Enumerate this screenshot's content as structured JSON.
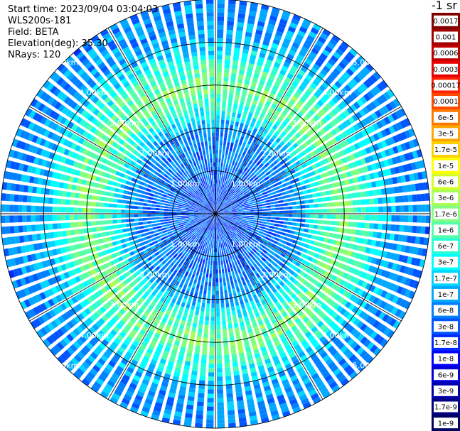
{
  "info": {
    "start_time": "Start time: 2023/09/04 03:04:03",
    "device": "WLS200s-181",
    "field": "Field: BETA",
    "elevation": "Elevation(deg): 35.30",
    "nrays": "NRays: 120"
  },
  "colorbar": {
    "unit": "-1 sr",
    "levels": [
      {
        "label": "0.0017",
        "color": "#800000"
      },
      {
        "label": "0.001",
        "color": "#a00000"
      },
      {
        "label": "0.0006",
        "color": "#c20000"
      },
      {
        "label": "0.0003",
        "color": "#e60000"
      },
      {
        "label": "0.00017",
        "color": "#ff2000"
      },
      {
        "label": "0.0001",
        "color": "#ff4a00"
      },
      {
        "label": "6e-5",
        "color": "#ff7a00"
      },
      {
        "label": "3e-5",
        "color": "#ffa400"
      },
      {
        "label": "1.7e-5",
        "color": "#ffd000"
      },
      {
        "label": "1e-5",
        "color": "#ffff00"
      },
      {
        "label": "6e-6",
        "color": "#d4ff2a"
      },
      {
        "label": "3e-6",
        "color": "#a8ff55"
      },
      {
        "label": "1.7e-6",
        "color": "#80ff80"
      },
      {
        "label": "1e-6",
        "color": "#55ffaa"
      },
      {
        "label": "6e-7",
        "color": "#2affd4"
      },
      {
        "label": "3e-7",
        "color": "#00ffff"
      },
      {
        "label": "1.7e-7",
        "color": "#00d4ff"
      },
      {
        "label": "1e-7",
        "color": "#00a8ff"
      },
      {
        "label": "6e-8",
        "color": "#0080ff"
      },
      {
        "label": "3e-8",
        "color": "#0055ff"
      },
      {
        "label": "1.7e-8",
        "color": "#002aff"
      },
      {
        "label": "1e-8",
        "color": "#0000ff"
      },
      {
        "label": "6e-9",
        "color": "#0000d4"
      },
      {
        "label": "3e-9",
        "color": "#0000aa"
      },
      {
        "label": "1.7e-9",
        "color": "#000080"
      },
      {
        "label": "1e-9",
        "color": "#000060"
      }
    ]
  },
  "chart_data": {
    "type": "heatmap",
    "projection": "polar-ppi",
    "range_rings": [
      {
        "range_km": 1,
        "label": "1.00km"
      },
      {
        "range_km": 2,
        "label": "2.00km"
      },
      {
        "range_km": 3,
        "label": "3.00km"
      },
      {
        "range_km": 4,
        "label": "4.00km"
      },
      {
        "range_km": 5,
        "label": "5.00km"
      }
    ],
    "max_range_km": 5,
    "spokes_deg": [
      0,
      30,
      60,
      90,
      120,
      150,
      180,
      210,
      240,
      270,
      300,
      330
    ],
    "label_azimuths_deg": [
      315,
      45,
      135,
      225
    ],
    "profile_range_km": [
      0.0,
      0.5,
      1.0,
      1.5,
      2.0,
      2.5,
      3.0,
      3.5,
      4.0,
      4.5,
      5.0
    ],
    "profile_level_idx": [
      19.5,
      19,
      18.5,
      18.2,
      17.5,
      14,
      12,
      14,
      16.5,
      17.5,
      18
    ]
  }
}
